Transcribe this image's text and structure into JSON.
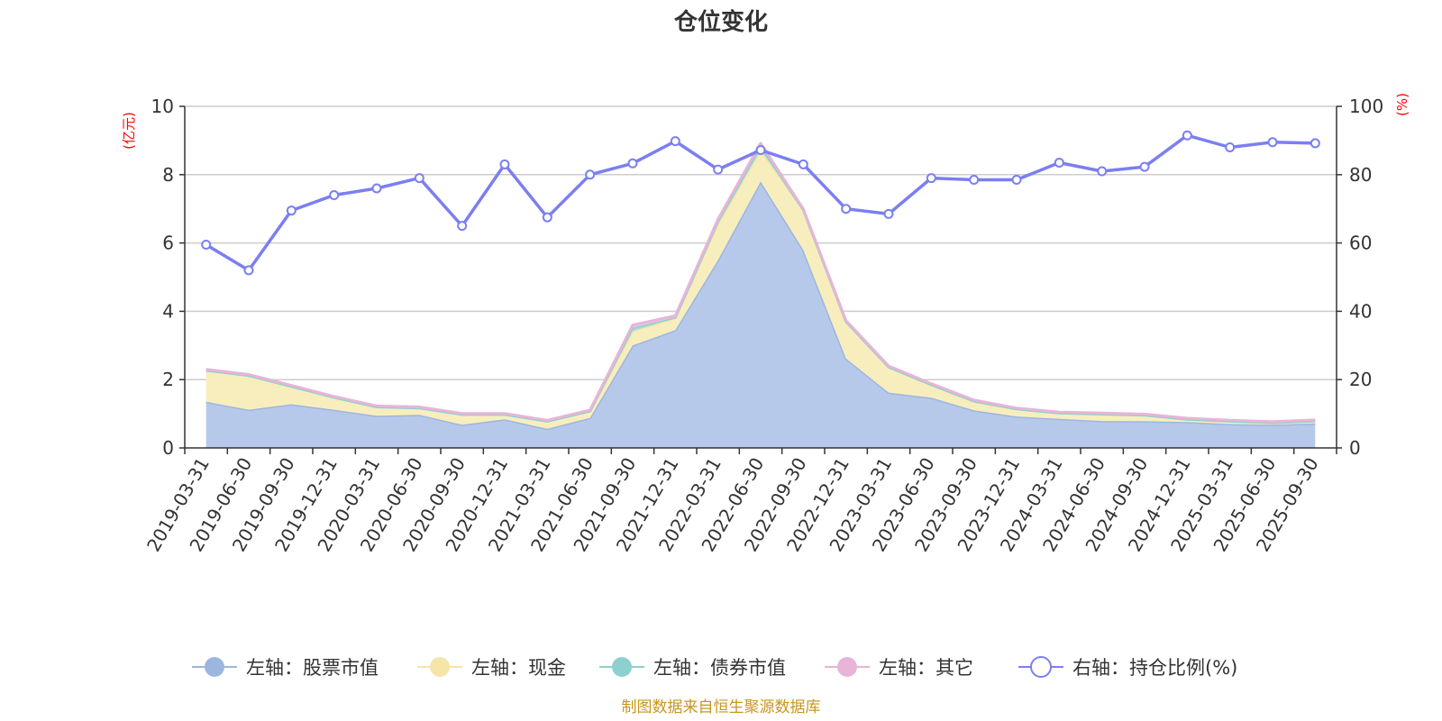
{
  "title": "仓位变化",
  "source": "制图数据来自恒生聚源数据库",
  "chart_data": {
    "type": "area",
    "title": "仓位变化",
    "x": [
      "2019-03-31",
      "2019-06-30",
      "2019-09-30",
      "2019-12-31",
      "2020-03-31",
      "2020-06-30",
      "2020-09-30",
      "2020-12-31",
      "2021-03-31",
      "2021-06-30",
      "2021-09-30",
      "2021-12-31",
      "2022-03-31",
      "2022-06-30",
      "2022-09-30",
      "2022-12-31",
      "2023-03-31",
      "2023-06-30",
      "2023-09-30",
      "2023-12-31",
      "2024-03-31",
      "2024-06-30",
      "2024-09-30",
      "2024-12-31",
      "2025-03-31",
      "2025-06-30",
      "2025-09-30"
    ],
    "left_axis": {
      "unit": "(亿元)",
      "ylim": [
        0,
        10
      ],
      "ticks": [
        0,
        2,
        4,
        6,
        8,
        10
      ]
    },
    "right_axis": {
      "unit": "(%)",
      "ylim": [
        0,
        100
      ],
      "ticks": [
        0,
        20,
        40,
        60,
        80,
        100
      ]
    },
    "grid": true,
    "legend_position": "bottom",
    "series": [
      {
        "name": "左轴：股票市值",
        "axis": "left",
        "kind": "stacked-area",
        "color": "#9db6e0",
        "fill": "#b6c9ea",
        "values": [
          1.35,
          1.12,
          1.28,
          1.12,
          0.94,
          0.97,
          0.68,
          0.84,
          0.56,
          0.88,
          3.0,
          3.45,
          5.5,
          7.8,
          5.8,
          2.62,
          1.62,
          1.47,
          1.1,
          0.92,
          0.85,
          0.79,
          0.78,
          0.76,
          0.7,
          0.68,
          0.72
        ]
      },
      {
        "name": "左轴：现金",
        "axis": "left",
        "kind": "stacked-area",
        "color": "#f5e6a8",
        "fill": "#f8eebd",
        "values": [
          0.92,
          1.0,
          0.52,
          0.36,
          0.26,
          0.2,
          0.3,
          0.14,
          0.22,
          0.2,
          0.42,
          0.35,
          1.06,
          0.92,
          1.17,
          1.08,
          0.75,
          0.38,
          0.27,
          0.22,
          0.17,
          0.2,
          0.18,
          0.08,
          0.08,
          0.06,
          0.07
        ]
      },
      {
        "name": "左轴：债券市值",
        "axis": "left",
        "kind": "stacked-area",
        "color": "#8dd0cf",
        "fill": "#a3dcdb",
        "values": [
          0,
          0,
          0,
          0,
          0,
          0,
          0,
          0,
          0,
          0,
          0.1,
          0.02,
          0.08,
          0.12,
          0,
          0,
          0,
          0,
          0,
          0,
          0,
          0,
          0,
          0,
          0,
          0,
          0
        ]
      },
      {
        "name": "左轴：其它",
        "axis": "left",
        "kind": "stacked-area",
        "color": "#e8b4d8",
        "fill": "#efc6e2",
        "values": [
          0.03,
          0.03,
          0.03,
          0.03,
          0.03,
          0.03,
          0.03,
          0.03,
          0.03,
          0.03,
          0.08,
          0.05,
          0.06,
          0.08,
          0.03,
          0.03,
          0.03,
          0.03,
          0.03,
          0.03,
          0.03,
          0.03,
          0.03,
          0.03,
          0.03,
          0.03,
          0.03
        ]
      },
      {
        "name": "右轴：持仓比例(%)",
        "axis": "right",
        "kind": "line",
        "color": "#7b7ff0",
        "values": [
          59.5,
          52,
          69.5,
          74,
          76,
          79,
          65,
          83,
          67.5,
          80,
          83.3,
          89.8,
          81.5,
          87.2,
          83,
          70,
          68.5,
          79,
          78.5,
          78.5,
          83.5,
          81,
          82.3,
          91.5,
          88,
          89.5,
          89.2
        ]
      }
    ]
  }
}
